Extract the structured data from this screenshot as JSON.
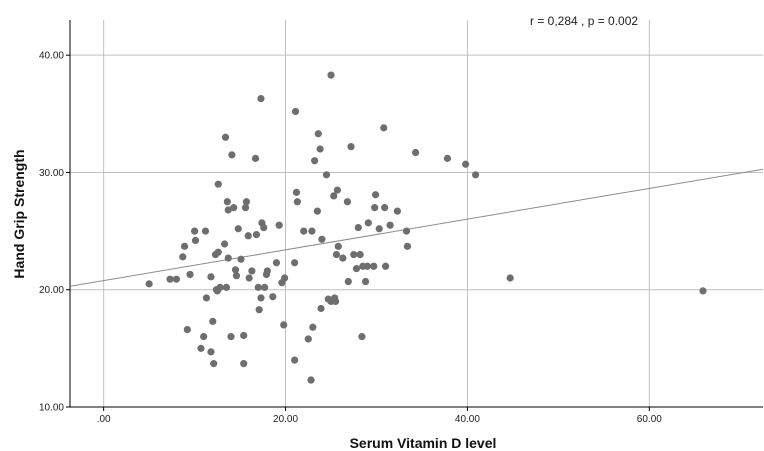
{
  "chart_data": {
    "type": "scatter",
    "title": "",
    "xlabel": "Serum Vitamin D level",
    "ylabel": "Hand Grip Strength",
    "annotation": "r = 0,284 , p = 0.002",
    "xlim": [
      -3.7,
      72.5
    ],
    "ylim": [
      10,
      43
    ],
    "xticks": [
      0,
      20,
      40,
      60
    ],
    "xtick_labels": [
      ".00",
      "20.00",
      "40.00",
      "60.00"
    ],
    "yticks": [
      10,
      20,
      30,
      40
    ],
    "ytick_labels": [
      "10.00",
      "20.00",
      "30.00",
      "40.00"
    ],
    "grid": true,
    "colors": {
      "points": "#6e6e6e",
      "fit_line": "#8c8c8c",
      "grid": "#c0c0c0",
      "axis": "#000000"
    },
    "fit_line": {
      "intercept": 20.78,
      "slope": 0.131
    },
    "points": [
      [
        5.0,
        20.5
      ],
      [
        7.3,
        20.9
      ],
      [
        8.0,
        20.9
      ],
      [
        8.7,
        22.8
      ],
      [
        8.9,
        23.7
      ],
      [
        9.2,
        16.6
      ],
      [
        9.5,
        21.3
      ],
      [
        10.0,
        25.0
      ],
      [
        10.1,
        24.2
      ],
      [
        10.7,
        15.0
      ],
      [
        11.2,
        25.0
      ],
      [
        11.3,
        19.3
      ],
      [
        11.0,
        16.0
      ],
      [
        11.8,
        21.1
      ],
      [
        11.8,
        14.7
      ],
      [
        12.0,
        17.3
      ],
      [
        12.1,
        13.7
      ],
      [
        12.3,
        23.0
      ],
      [
        12.4,
        20.0
      ],
      [
        12.5,
        19.9
      ],
      [
        12.6,
        23.2
      ],
      [
        12.6,
        29.0
      ],
      [
        12.8,
        20.2
      ],
      [
        13.3,
        23.9
      ],
      [
        13.4,
        33.0
      ],
      [
        13.5,
        20.2
      ],
      [
        13.6,
        27.5
      ],
      [
        13.7,
        22.7
      ],
      [
        13.7,
        26.8
      ],
      [
        14.0,
        16.0
      ],
      [
        14.1,
        31.5
      ],
      [
        14.3,
        27.0
      ],
      [
        14.5,
        21.7
      ],
      [
        14.6,
        21.2
      ],
      [
        14.8,
        25.2
      ],
      [
        15.1,
        22.6
      ],
      [
        15.4,
        13.7
      ],
      [
        15.4,
        16.1
      ],
      [
        15.6,
        27.0
      ],
      [
        15.7,
        27.5
      ],
      [
        15.9,
        24.6
      ],
      [
        16.0,
        21.0
      ],
      [
        16.3,
        21.6
      ],
      [
        16.7,
        31.2
      ],
      [
        16.8,
        24.7
      ],
      [
        17.0,
        20.2
      ],
      [
        17.1,
        18.3
      ],
      [
        17.3,
        19.3
      ],
      [
        17.3,
        36.3
      ],
      [
        17.4,
        25.7
      ],
      [
        17.6,
        25.3
      ],
      [
        17.7,
        20.2
      ],
      [
        17.9,
        21.3
      ],
      [
        18.0,
        21.6
      ],
      [
        18.6,
        19.4
      ],
      [
        19.0,
        22.3
      ],
      [
        19.3,
        25.5
      ],
      [
        19.6,
        20.6
      ],
      [
        19.8,
        17.0
      ],
      [
        19.9,
        21.0
      ],
      [
        21.0,
        14.0
      ],
      [
        21.0,
        22.3
      ],
      [
        21.1,
        35.2
      ],
      [
        21.2,
        28.3
      ],
      [
        21.3,
        27.5
      ],
      [
        22.0,
        25.0
      ],
      [
        22.5,
        15.8
      ],
      [
        22.8,
        12.3
      ],
      [
        22.9,
        25.0
      ],
      [
        23.0,
        16.8
      ],
      [
        23.2,
        31.0
      ],
      [
        23.5,
        26.7
      ],
      [
        23.6,
        33.3
      ],
      [
        23.8,
        32.0
      ],
      [
        23.9,
        18.4
      ],
      [
        24.0,
        24.3
      ],
      [
        24.5,
        29.8
      ],
      [
        24.7,
        19.2
      ],
      [
        25.0,
        19.0
      ],
      [
        25.0,
        38.3
      ],
      [
        25.3,
        28.0
      ],
      [
        25.4,
        19.3
      ],
      [
        25.5,
        19.0
      ],
      [
        25.6,
        23.0
      ],
      [
        25.7,
        28.5
      ],
      [
        25.8,
        23.7
      ],
      [
        26.3,
        22.7
      ],
      [
        26.8,
        27.5
      ],
      [
        26.9,
        20.7
      ],
      [
        27.2,
        32.2
      ],
      [
        27.5,
        23.0
      ],
      [
        27.8,
        21.8
      ],
      [
        28.0,
        25.3
      ],
      [
        28.2,
        23.0
      ],
      [
        28.4,
        16.0
      ],
      [
        28.5,
        22.0
      ],
      [
        28.8,
        20.7
      ],
      [
        29.0,
        22.0
      ],
      [
        29.1,
        25.7
      ],
      [
        29.7,
        22.0
      ],
      [
        29.8,
        27.0
      ],
      [
        29.9,
        28.1
      ],
      [
        30.3,
        25.2
      ],
      [
        30.8,
        33.8
      ],
      [
        30.9,
        27.0
      ],
      [
        31.0,
        22.0
      ],
      [
        31.5,
        25.5
      ],
      [
        32.3,
        26.7
      ],
      [
        33.3,
        25.0
      ],
      [
        33.4,
        23.7
      ],
      [
        34.3,
        31.7
      ],
      [
        37.8,
        31.2
      ],
      [
        39.8,
        30.7
      ],
      [
        40.9,
        29.8
      ],
      [
        44.7,
        21.0
      ],
      [
        65.9,
        19.9
      ]
    ]
  }
}
